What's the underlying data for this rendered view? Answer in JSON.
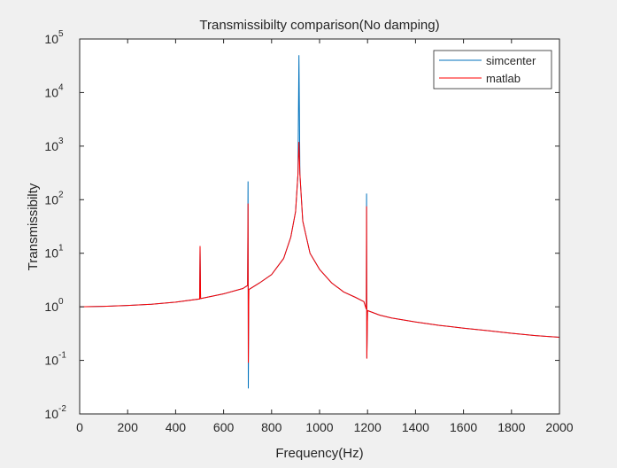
{
  "chart_data": {
    "type": "line",
    "title": "Transmissibilty comparison(No damping)",
    "xlabel": "Frequency(Hz)",
    "ylabel": "Transmissibilty",
    "xlim": [
      0,
      2000
    ],
    "ylim": [
      0.01,
      100000
    ],
    "yscale": "log",
    "grid": false,
    "legend_position": "top-right",
    "xticks": [
      "0",
      "200",
      "400",
      "600",
      "800",
      "1000",
      "1200",
      "1400",
      "1600",
      "1800",
      "2000"
    ],
    "yticks": [
      {
        "base": "10",
        "exp": "-2"
      },
      {
        "base": "10",
        "exp": "-1"
      },
      {
        "base": "10",
        "exp": "0"
      },
      {
        "base": "10",
        "exp": "1"
      },
      {
        "base": "10",
        "exp": "2"
      },
      {
        "base": "10",
        "exp": "3"
      },
      {
        "base": "10",
        "exp": "4"
      },
      {
        "base": "10",
        "exp": "5"
      }
    ],
    "series": [
      {
        "name": "simcenter",
        "color": "#0072bd",
        "points": [
          [
            0,
            1
          ],
          [
            100,
            1.02
          ],
          [
            200,
            1.06
          ],
          [
            300,
            1.12
          ],
          [
            400,
            1.22
          ],
          [
            500,
            1.4
          ],
          [
            502,
            13.6
          ],
          [
            504,
            1.42
          ],
          [
            600,
            1.75
          ],
          [
            680,
            2.2
          ],
          [
            700,
            2.5
          ],
          [
            702,
            220
          ],
          [
            703,
            0.03
          ],
          [
            705,
            2.1
          ],
          [
            750,
            2.8
          ],
          [
            800,
            4
          ],
          [
            850,
            8
          ],
          [
            880,
            20
          ],
          [
            900,
            60
          ],
          [
            910,
            300
          ],
          [
            914,
            50000
          ],
          [
            918,
            300
          ],
          [
            930,
            40
          ],
          [
            960,
            10
          ],
          [
            1000,
            5
          ],
          [
            1050,
            2.8
          ],
          [
            1100,
            1.9
          ],
          [
            1150,
            1.5
          ],
          [
            1185,
            1.25
          ],
          [
            1195,
            0.9
          ],
          [
            1196,
            130
          ],
          [
            1197,
            0.11
          ],
          [
            1200,
            0.85
          ],
          [
            1250,
            0.7
          ],
          [
            1300,
            0.62
          ],
          [
            1400,
            0.52
          ],
          [
            1500,
            0.45
          ],
          [
            1600,
            0.4
          ],
          [
            1700,
            0.36
          ],
          [
            1800,
            0.32
          ],
          [
            1900,
            0.29
          ],
          [
            2000,
            0.27
          ]
        ]
      },
      {
        "name": "matlab",
        "color": "#ff0000",
        "points": [
          [
            0,
            1
          ],
          [
            100,
            1.02
          ],
          [
            200,
            1.06
          ],
          [
            300,
            1.12
          ],
          [
            400,
            1.22
          ],
          [
            500,
            1.4
          ],
          [
            502,
            13.6
          ],
          [
            504,
            1.42
          ],
          [
            600,
            1.75
          ],
          [
            680,
            2.2
          ],
          [
            700,
            2.5
          ],
          [
            702,
            85
          ],
          [
            703,
            0.09
          ],
          [
            705,
            2.1
          ],
          [
            750,
            2.8
          ],
          [
            800,
            4
          ],
          [
            850,
            8
          ],
          [
            880,
            20
          ],
          [
            900,
            60
          ],
          [
            910,
            300
          ],
          [
            914,
            1200
          ],
          [
            918,
            300
          ],
          [
            930,
            40
          ],
          [
            960,
            10
          ],
          [
            1000,
            5
          ],
          [
            1050,
            2.8
          ],
          [
            1100,
            1.9
          ],
          [
            1150,
            1.5
          ],
          [
            1185,
            1.25
          ],
          [
            1195,
            0.9
          ],
          [
            1196,
            75
          ],
          [
            1197,
            0.108
          ],
          [
            1200,
            0.85
          ],
          [
            1250,
            0.7
          ],
          [
            1300,
            0.62
          ],
          [
            1400,
            0.52
          ],
          [
            1500,
            0.45
          ],
          [
            1600,
            0.4
          ],
          [
            1700,
            0.36
          ],
          [
            1800,
            0.32
          ],
          [
            1900,
            0.29
          ],
          [
            2000,
            0.27
          ]
        ]
      }
    ]
  }
}
